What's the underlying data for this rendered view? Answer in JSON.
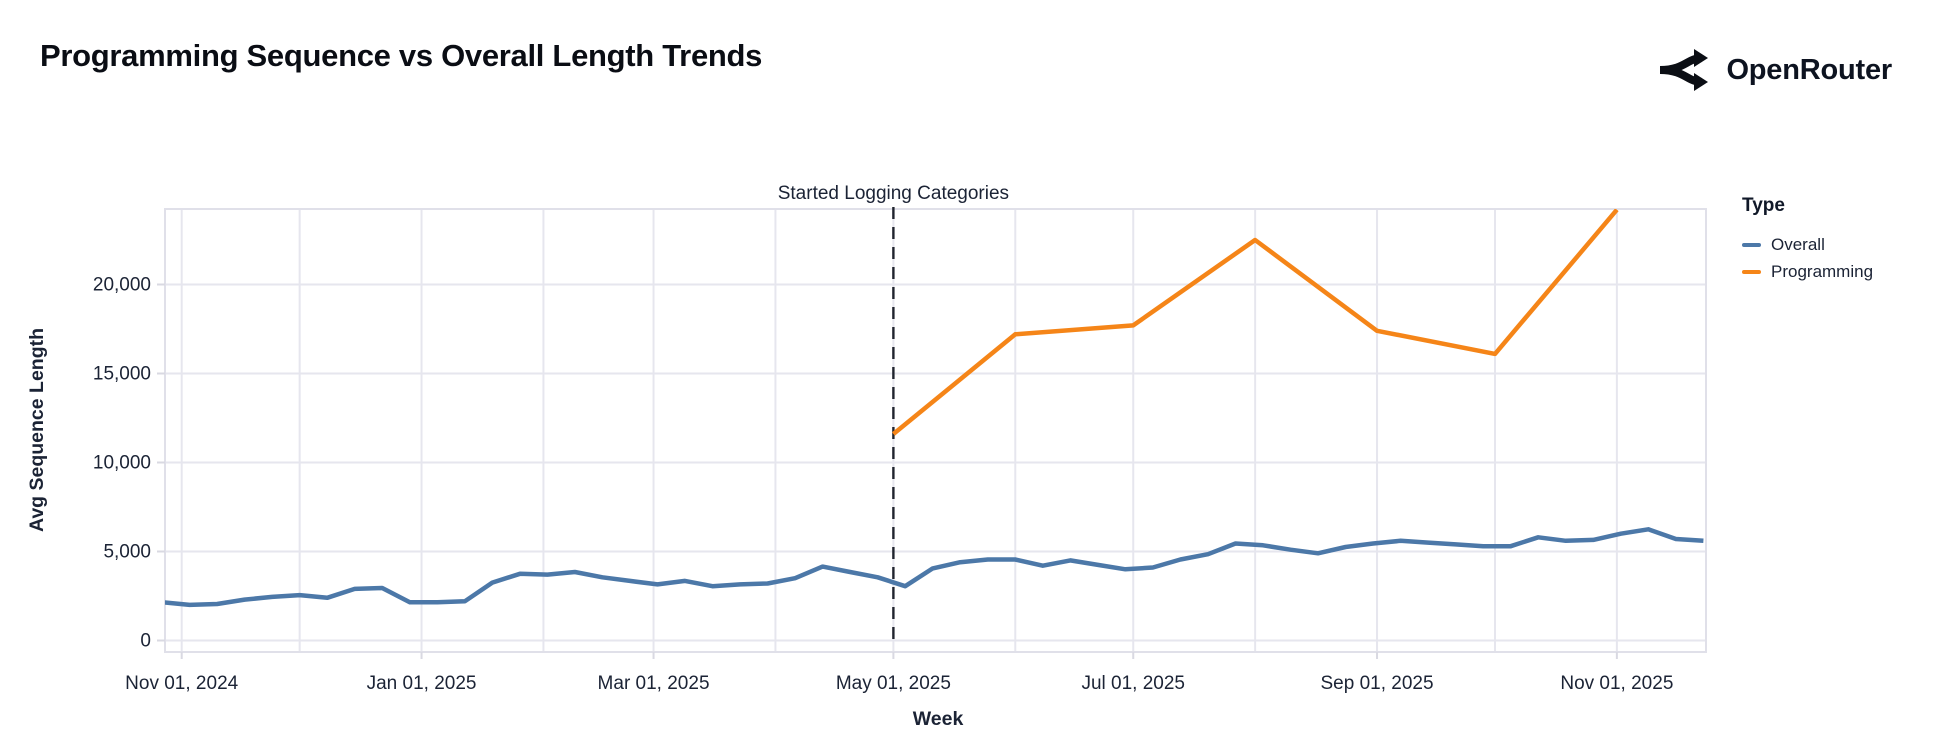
{
  "header": {
    "brand": "OpenRouter"
  },
  "chart_data": {
    "type": "line",
    "title": "Programming Sequence vs Overall Length Trends",
    "xlabel": "Week",
    "ylabel": "Avg Sequence Length",
    "ylim": [
      0,
      24000
    ],
    "grid": true,
    "legend_position": "right",
    "legend_title": "Type",
    "background": "#ffffff",
    "gridline_color": "#e6e6ee",
    "text_color": "#1b2335",
    "annotation": {
      "label": "Started Logging Categories",
      "date": "2025-05-01",
      "style": "dashed-vertical-line",
      "color": "#20242e"
    },
    "x_ticks": [
      {
        "date": "2024-11-01",
        "label": "Nov 01, 2024"
      },
      {
        "date": "2025-01-01",
        "label": "Jan 01, 2025"
      },
      {
        "date": "2025-03-01",
        "label": "Mar 01, 2025"
      },
      {
        "date": "2025-05-01",
        "label": "May 01, 2025"
      },
      {
        "date": "2025-07-01",
        "label": "Jul 01, 2025"
      },
      {
        "date": "2025-09-01",
        "label": "Sep 01, 2025"
      },
      {
        "date": "2025-11-01",
        "label": "Nov 01, 2025"
      }
    ],
    "x_gridline_dates": [
      "2024-11-01",
      "2024-12-01",
      "2025-01-01",
      "2025-02-01",
      "2025-03-01",
      "2025-04-01",
      "2025-05-01",
      "2025-06-01",
      "2025-07-01",
      "2025-08-01",
      "2025-09-01",
      "2025-10-01",
      "2025-11-01"
    ],
    "y_ticks": [
      {
        "value": 0,
        "label": "0"
      },
      {
        "value": 5000,
        "label": "5,000"
      },
      {
        "value": 10000,
        "label": "10,000"
      },
      {
        "value": 15000,
        "label": "15,000"
      },
      {
        "value": 20000,
        "label": "20,000"
      }
    ],
    "series": [
      {
        "name": "Overall",
        "color": "#4c78a8",
        "points": [
          [
            "2024-10-27",
            2150
          ],
          [
            "2024-11-03",
            2000
          ],
          [
            "2024-11-10",
            2050
          ],
          [
            "2024-11-17",
            2300
          ],
          [
            "2024-11-24",
            2450
          ],
          [
            "2024-12-01",
            2550
          ],
          [
            "2024-12-08",
            2400
          ],
          [
            "2024-12-15",
            2900
          ],
          [
            "2024-12-22",
            2950
          ],
          [
            "2024-12-29",
            2150
          ],
          [
            "2025-01-05",
            2150
          ],
          [
            "2025-01-12",
            2200
          ],
          [
            "2025-01-19",
            3250
          ],
          [
            "2025-01-26",
            3750
          ],
          [
            "2025-02-02",
            3700
          ],
          [
            "2025-02-09",
            3850
          ],
          [
            "2025-02-16",
            3550
          ],
          [
            "2025-02-23",
            3350
          ],
          [
            "2025-03-02",
            3150
          ],
          [
            "2025-03-09",
            3350
          ],
          [
            "2025-03-16",
            3050
          ],
          [
            "2025-03-23",
            3150
          ],
          [
            "2025-03-30",
            3200
          ],
          [
            "2025-04-06",
            3500
          ],
          [
            "2025-04-13",
            4150
          ],
          [
            "2025-04-20",
            3850
          ],
          [
            "2025-04-27",
            3550
          ],
          [
            "2025-05-04",
            3050
          ],
          [
            "2025-05-11",
            4050
          ],
          [
            "2025-05-18",
            4400
          ],
          [
            "2025-05-25",
            4550
          ],
          [
            "2025-06-01",
            4550
          ],
          [
            "2025-06-08",
            4200
          ],
          [
            "2025-06-15",
            4500
          ],
          [
            "2025-06-22",
            4250
          ],
          [
            "2025-06-29",
            4000
          ],
          [
            "2025-07-06",
            4100
          ],
          [
            "2025-07-13",
            4550
          ],
          [
            "2025-07-20",
            4850
          ],
          [
            "2025-07-27",
            5450
          ],
          [
            "2025-08-03",
            5350
          ],
          [
            "2025-08-10",
            5100
          ],
          [
            "2025-08-17",
            4900
          ],
          [
            "2025-08-24",
            5250
          ],
          [
            "2025-08-31",
            5450
          ],
          [
            "2025-09-07",
            5600
          ],
          [
            "2025-09-14",
            5500
          ],
          [
            "2025-09-21",
            5400
          ],
          [
            "2025-09-28",
            5300
          ],
          [
            "2025-10-05",
            5300
          ],
          [
            "2025-10-12",
            5800
          ],
          [
            "2025-10-19",
            5600
          ],
          [
            "2025-10-26",
            5650
          ],
          [
            "2025-11-02",
            6000
          ],
          [
            "2025-11-09",
            6250
          ],
          [
            "2025-11-16",
            5700
          ],
          [
            "2025-11-23",
            5600
          ]
        ]
      },
      {
        "name": "Programming",
        "color": "#f58518",
        "points": [
          [
            "2025-05-01",
            11600
          ],
          [
            "2025-06-01",
            17200
          ],
          [
            "2025-07-01",
            17700
          ],
          [
            "2025-08-01",
            22500
          ],
          [
            "2025-09-01",
            17400
          ],
          [
            "2025-10-01",
            16100
          ],
          [
            "2025-11-01",
            24200
          ]
        ]
      }
    ]
  }
}
